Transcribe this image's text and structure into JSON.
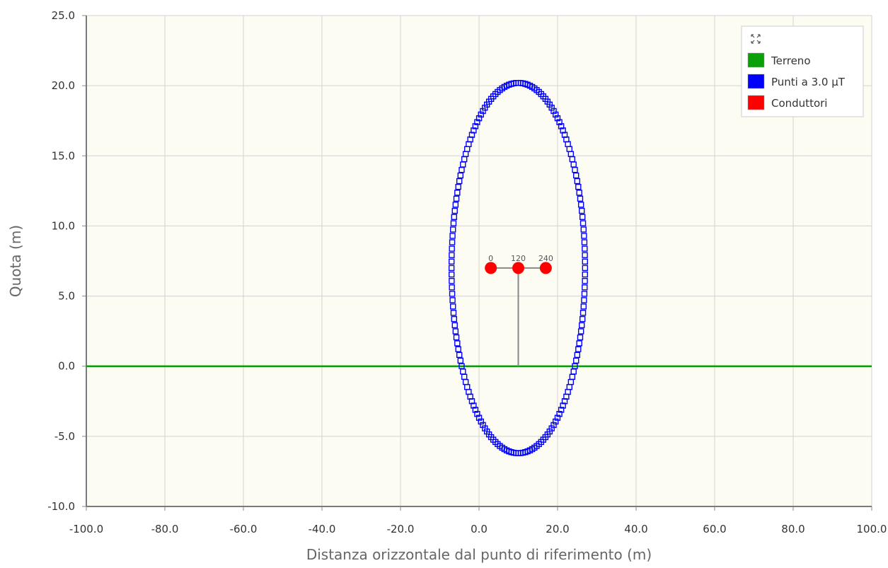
{
  "chart_data": {
    "type": "scatter",
    "xlabel": "Distanza orizzontale dal punto di riferimento (m)",
    "ylabel": "Quota (m)",
    "xlim": [
      -100,
      100
    ],
    "ylim": [
      -10,
      25
    ],
    "x_ticks": [
      "-100.0",
      "-80.0",
      "-60.0",
      "-40.0",
      "-20.0",
      "0.0",
      "20.0",
      "40.0",
      "60.0",
      "80.0",
      "100.0"
    ],
    "y_ticks": [
      "-10.0",
      "-5.0",
      "0.0",
      "5.0",
      "10.0",
      "15.0",
      "20.0",
      "25.0"
    ],
    "grid": true,
    "legend_position": "top-right",
    "background_color": "#fdfcf3",
    "series": [
      {
        "name": "Terreno",
        "kind": "line",
        "color": "#0aa00a",
        "x": [
          -100,
          100
        ],
        "y": [
          0,
          0
        ]
      },
      {
        "name": "Punti a 3.0 µT",
        "kind": "marker-square",
        "color": "#0000ff",
        "shape": "ellipse",
        "center": [
          10,
          7
        ],
        "semi_axis_x": 17,
        "semi_axis_y": 13.2,
        "point_count": 180
      },
      {
        "name": "Conduttori",
        "kind": "marker-circle",
        "color": "#ff0000",
        "points": [
          {
            "x": 3,
            "y": 7,
            "label": "0"
          },
          {
            "x": 10,
            "y": 7,
            "label": "120"
          },
          {
            "x": 17,
            "y": 7,
            "label": "240"
          }
        ]
      }
    ],
    "support": {
      "color": "#888888",
      "pole": {
        "x": 10,
        "y_from": 0,
        "y_to": 7
      },
      "crossarm": {
        "x_from": 3,
        "x_to": 17,
        "y": 7
      }
    },
    "legend_icon": "expand-icon"
  }
}
